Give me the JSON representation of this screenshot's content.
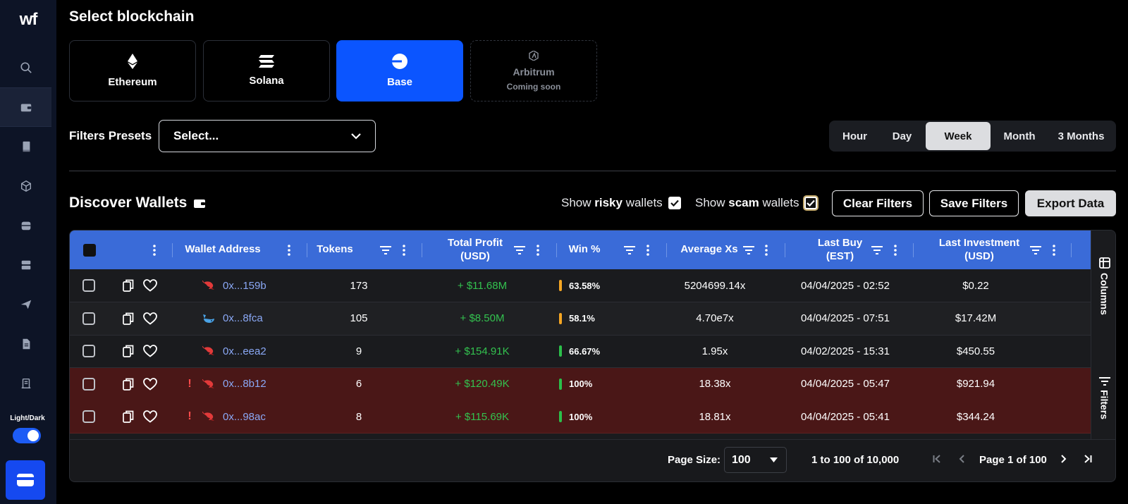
{
  "sidebar": {
    "logo": "wf",
    "icons": [
      "search-icon",
      "wallet-icon",
      "book-icon",
      "cube-icon",
      "database-icon",
      "server-icon",
      "send-icon",
      "document-icon",
      "receipt-icon"
    ],
    "theme_label": "Light/Dark",
    "theme_dark": true,
    "bottom_button_icon": "wallet-card-icon"
  },
  "header": {
    "title": "Select blockchain"
  },
  "chains": [
    {
      "name": "Ethereum",
      "icon": "ethereum-icon",
      "state": "normal"
    },
    {
      "name": "Solana",
      "icon": "solana-icon",
      "state": "normal"
    },
    {
      "name": "Base",
      "icon": "base-icon",
      "state": "selected"
    },
    {
      "name": "Arbitrum",
      "icon": "arbitrum-icon",
      "state": "disabled",
      "subtitle": "Coming soon"
    }
  ],
  "filters": {
    "label": "Filters Presets",
    "select_value": "Select..."
  },
  "timeframes": {
    "options": [
      "Hour",
      "Day",
      "Week",
      "Month",
      "3 Months"
    ],
    "selected": "Week"
  },
  "discover": {
    "title": "Discover Wallets",
    "risky_prefix": "Show",
    "risky_bold": "risky",
    "risky_suffix": "wallets",
    "risky_checked": true,
    "scam_prefix": "Show",
    "scam_bold": "scam",
    "scam_suffix": "wallets",
    "scam_checked": true,
    "clear_filters": "Clear Filters",
    "save_filters": "Save Filters",
    "export_data": "Export Data"
  },
  "table": {
    "columns": {
      "wallet_address": "Wallet Address",
      "tokens": "Tokens",
      "total_profit_1": "Total Profit",
      "total_profit_2": "(USD)",
      "win_pct": "Win %",
      "average_xs": "Average Xs",
      "last_buy_1": "Last Buy",
      "last_buy_2": "(EST)",
      "last_investment_1": "Last Investment",
      "last_investment_2": "(USD)"
    },
    "rows": [
      {
        "risky": false,
        "icon": "shrimp-icon",
        "address": "0x...159b",
        "tokens": "173",
        "profit": "+ $11.68M",
        "win": "63.58%",
        "win_color": "#f5a623",
        "avg_xs": "5204699.14x",
        "last_buy": "04/04/2025 - 02:52",
        "last_investment": "$0.22"
      },
      {
        "risky": false,
        "icon": "whale-icon",
        "address": "0x...8fca",
        "tokens": "105",
        "profit": "+ $8.50M",
        "win": "58.1%",
        "win_color": "#f5a623",
        "avg_xs": "4.70e7x",
        "last_buy": "04/04/2025 - 07:51",
        "last_investment": "$17.42M"
      },
      {
        "risky": false,
        "icon": "shrimp-icon",
        "address": "0x...eea2",
        "tokens": "9",
        "profit": "+ $154.91K",
        "win": "66.67%",
        "win_color": "#2bbf4a",
        "avg_xs": "1.95x",
        "last_buy": "04/02/2025 - 15:31",
        "last_investment": "$450.55"
      },
      {
        "risky": true,
        "flag": "!",
        "icon": "shrimp-icon",
        "address": "0x...8b12",
        "tokens": "6",
        "profit": "+ $120.49K",
        "win": "100%",
        "win_color": "#2bbf4a",
        "avg_xs": "18.38x",
        "last_buy": "04/04/2025 - 05:47",
        "last_investment": "$921.94"
      },
      {
        "risky": true,
        "flag": "!",
        "icon": "shrimp-icon",
        "address": "0x...98ac",
        "tokens": "8",
        "profit": "+ $115.69K",
        "win": "100%",
        "win_color": "#2bbf4a",
        "avg_xs": "18.81x",
        "last_buy": "04/04/2025 - 05:41",
        "last_investment": "$344.24"
      }
    ],
    "side_columns": "Columns",
    "side_filters": "Filters"
  },
  "pagination": {
    "page_size_label": "Page Size:",
    "page_size_value": "100",
    "range_text": "1 to 100 of 10,000",
    "page_text": "Page 1 of 100"
  }
}
